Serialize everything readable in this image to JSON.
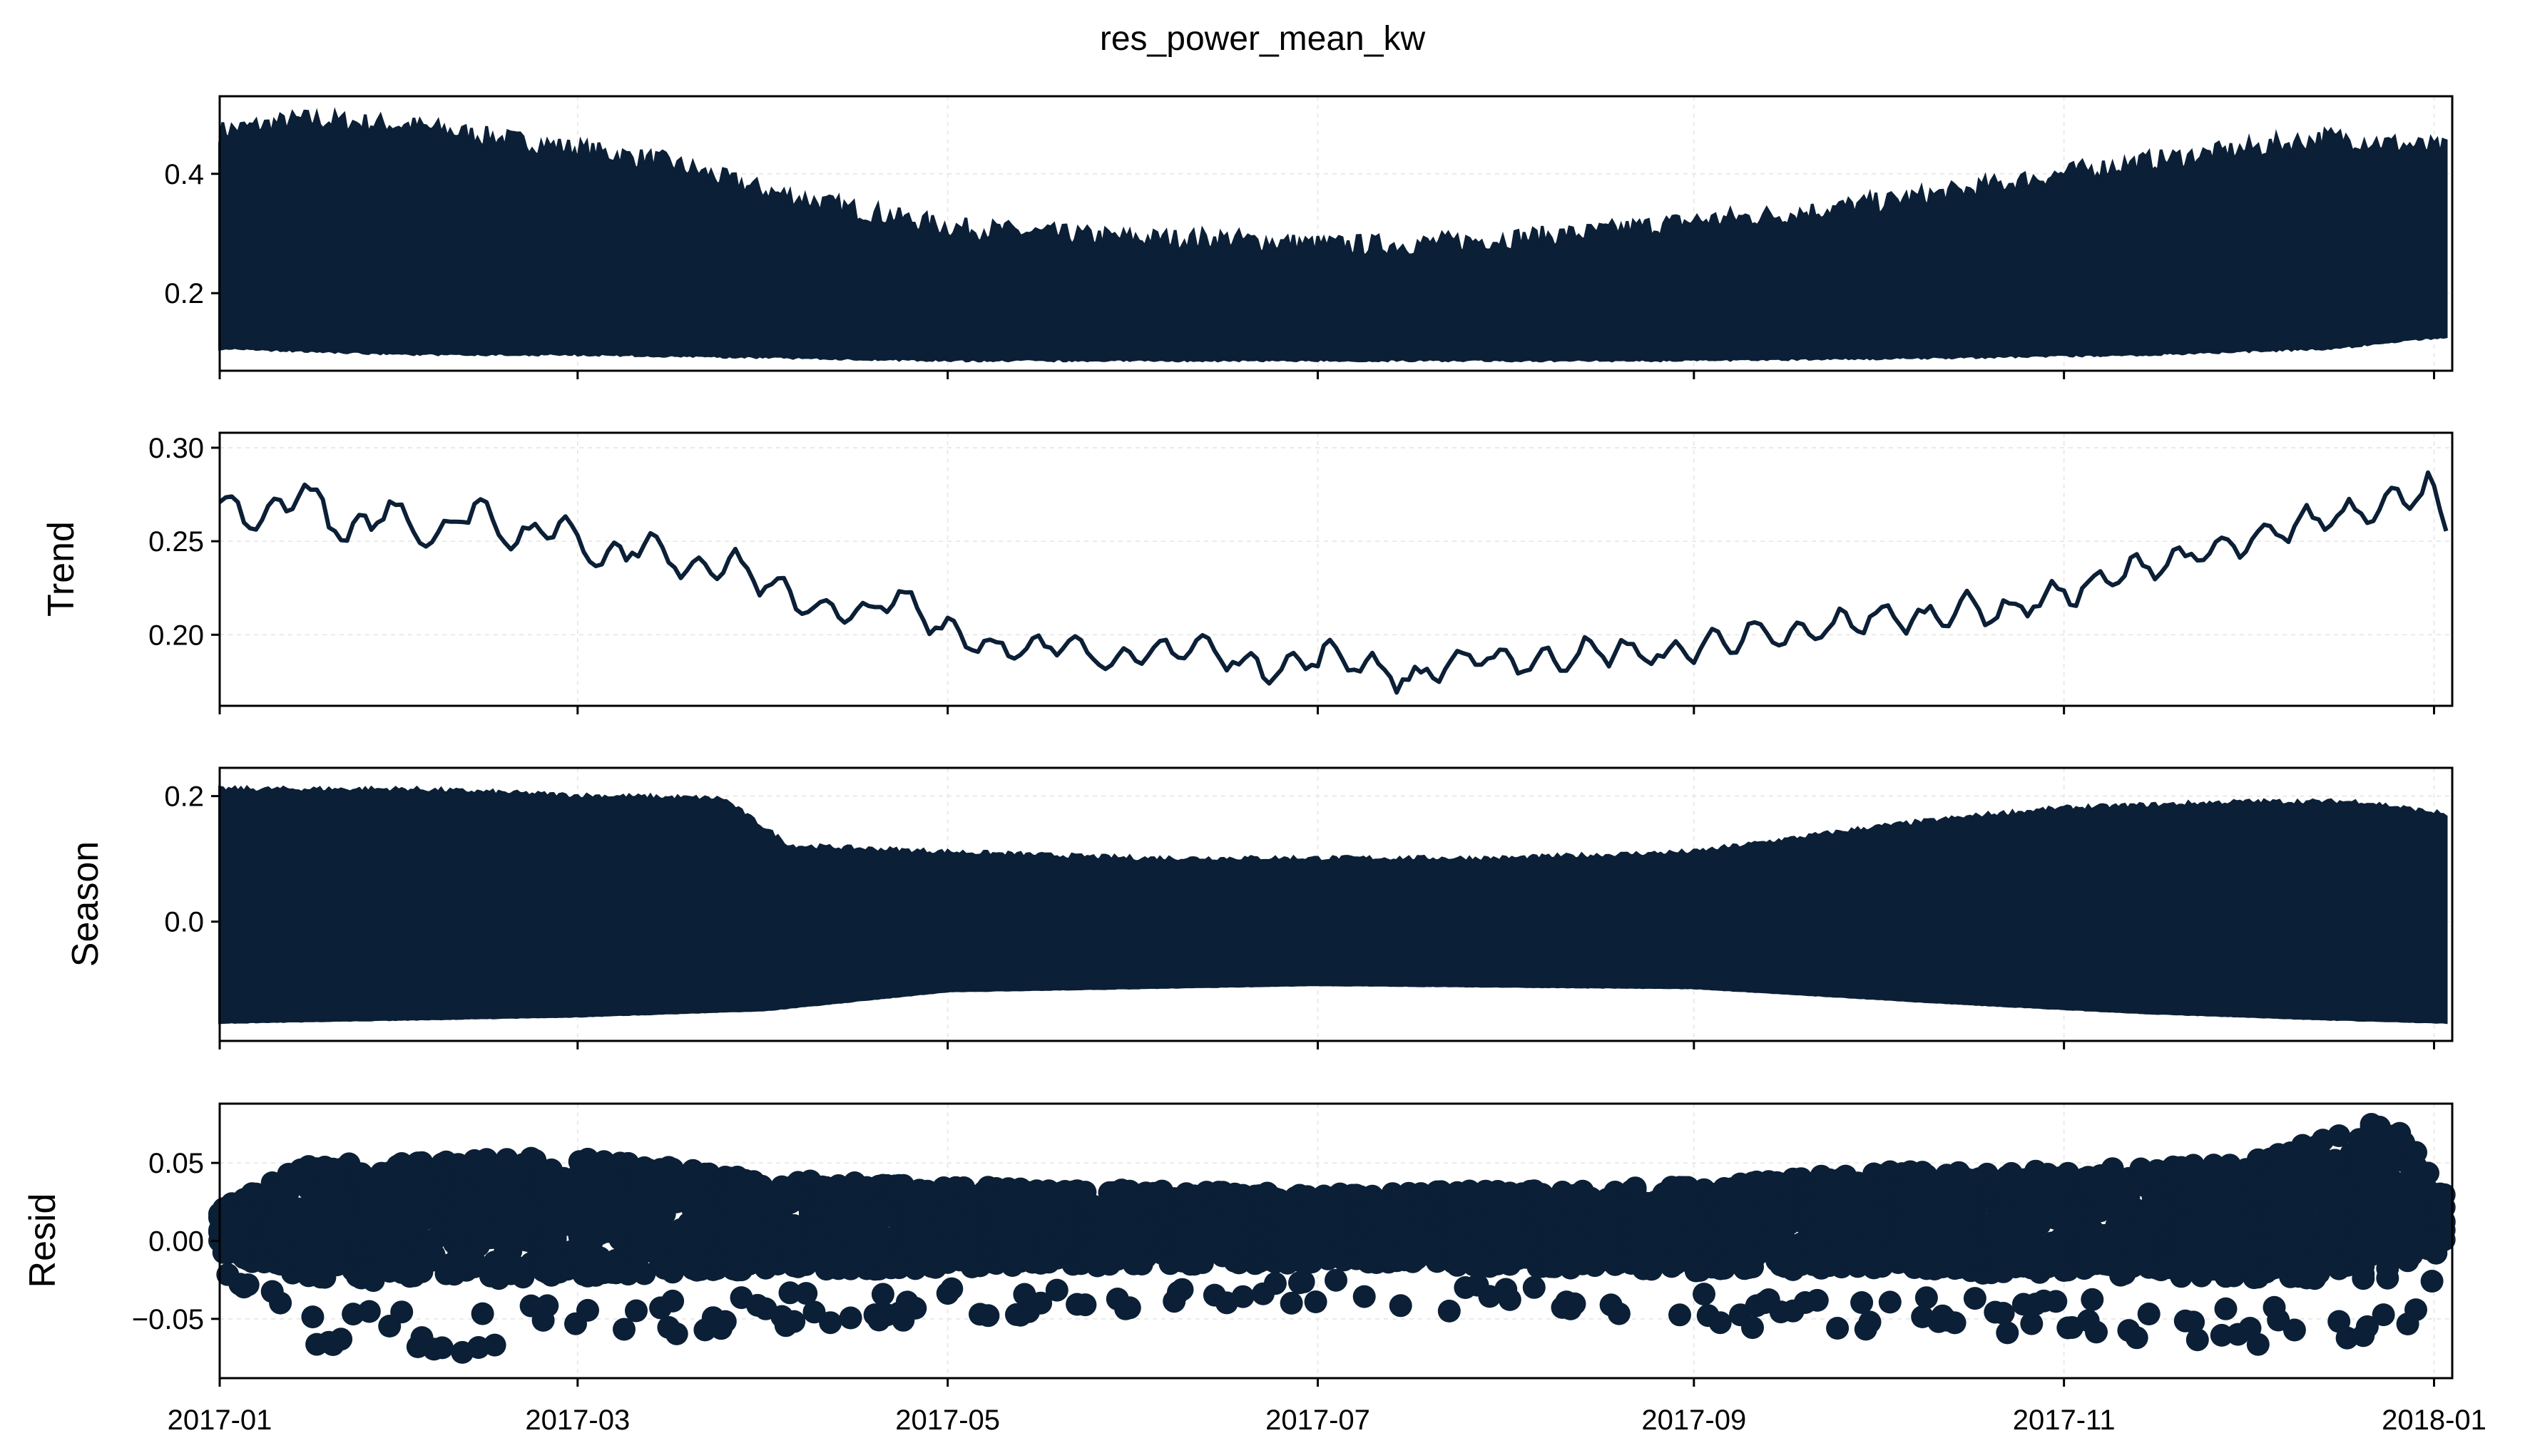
{
  "title": "res_power_mean_kw",
  "colors": {
    "series": "#0b1f36",
    "frame": "#000000"
  },
  "x_ticks": [
    "2017-01",
    "2017-03",
    "2017-05",
    "2017-07",
    "2017-09",
    "2017-11",
    "2018-01"
  ],
  "chart_data": [
    {
      "type": "area",
      "panel": "observed",
      "ylabel": "",
      "xlim": [
        "2017-01-01",
        "2018-01-04"
      ],
      "ylim": [
        0.07,
        0.53
      ],
      "yticks": [
        0.2,
        0.4
      ],
      "ytick_labels": [
        "0.2",
        "0.4"
      ],
      "grid": true,
      "series": [
        {
          "values_upper": [
            [
              "2017-01-01",
              0.47
            ],
            [
              "2017-01-15",
              0.49
            ],
            [
              "2017-02-01",
              0.48
            ],
            [
              "2017-02-15",
              0.46
            ],
            [
              "2017-03-01",
              0.44
            ],
            [
              "2017-03-15",
              0.42
            ],
            [
              "2017-04-01",
              0.37
            ],
            [
              "2017-04-15",
              0.34
            ],
            [
              "2017-05-01",
              0.31
            ],
            [
              "2017-05-15",
              0.3
            ],
            [
              "2017-06-01",
              0.29
            ],
            [
              "2017-06-15",
              0.29
            ],
            [
              "2017-07-01",
              0.28
            ],
            [
              "2017-07-15",
              0.28
            ],
            [
              "2017-08-01",
              0.29
            ],
            [
              "2017-08-15",
              0.3
            ],
            [
              "2017-09-01",
              0.32
            ],
            [
              "2017-09-15",
              0.33
            ],
            [
              "2017-10-01",
              0.35
            ],
            [
              "2017-10-15",
              0.37
            ],
            [
              "2017-11-01",
              0.4
            ],
            [
              "2017-11-15",
              0.42
            ],
            [
              "2017-12-01",
              0.44
            ],
            [
              "2017-12-15",
              0.46
            ],
            [
              "2018-01-03",
              0.44
            ]
          ],
          "values_lower": [
            [
              "2017-01-01",
              0.11
            ],
            [
              "2017-02-01",
              0.1
            ],
            [
              "2017-03-01",
              0.1
            ],
            [
              "2017-04-01",
              0.095
            ],
            [
              "2017-05-01",
              0.09
            ],
            [
              "2017-07-01",
              0.09
            ],
            [
              "2017-09-01",
              0.09
            ],
            [
              "2017-10-15",
              0.095
            ],
            [
              "2017-11-15",
              0.1
            ],
            [
              "2017-12-15",
              0.11
            ],
            [
              "2018-01-03",
              0.13
            ]
          ]
        }
      ]
    },
    {
      "type": "line",
      "panel": "trend",
      "ylabel": "Trend",
      "xlim": [
        "2017-01-01",
        "2018-01-04"
      ],
      "ylim": [
        0.162,
        0.308
      ],
      "yticks": [
        0.2,
        0.25,
        0.3
      ],
      "ytick_labels": [
        "0.20",
        "0.25",
        "0.30"
      ],
      "grid": true,
      "series": [
        {
          "values": [
            [
              "2017-01-01",
              0.27
            ],
            [
              "2017-01-08",
              0.26
            ],
            [
              "2017-01-15",
              0.28
            ],
            [
              "2017-01-22",
              0.25
            ],
            [
              "2017-01-29",
              0.27
            ],
            [
              "2017-02-05",
              0.25
            ],
            [
              "2017-02-12",
              0.27
            ],
            [
              "2017-02-19",
              0.25
            ],
            [
              "2017-02-26",
              0.26
            ],
            [
              "2017-03-05",
              0.24
            ],
            [
              "2017-03-12",
              0.25
            ],
            [
              "2017-03-19",
              0.235
            ],
            [
              "2017-03-26",
              0.24
            ],
            [
              "2017-04-02",
              0.225
            ],
            [
              "2017-04-09",
              0.215
            ],
            [
              "2017-04-16",
              0.21
            ],
            [
              "2017-04-23",
              0.22
            ],
            [
              "2017-04-30",
              0.205
            ],
            [
              "2017-05-07",
              0.195
            ],
            [
              "2017-05-14",
              0.19
            ],
            [
              "2017-05-21",
              0.198
            ],
            [
              "2017-05-28",
              0.185
            ],
            [
              "2017-06-04",
              0.19
            ],
            [
              "2017-06-11",
              0.195
            ],
            [
              "2017-06-18",
              0.185
            ],
            [
              "2017-06-25",
              0.182
            ],
            [
              "2017-07-02",
              0.19
            ],
            [
              "2017-07-09",
              0.185
            ],
            [
              "2017-07-16",
              0.175
            ],
            [
              "2017-07-23",
              0.185
            ],
            [
              "2017-07-30",
              0.188
            ],
            [
              "2017-08-06",
              0.185
            ],
            [
              "2017-08-13",
              0.19
            ],
            [
              "2017-08-20",
              0.192
            ],
            [
              "2017-08-27",
              0.188
            ],
            [
              "2017-09-03",
              0.195
            ],
            [
              "2017-09-10",
              0.2
            ],
            [
              "2017-09-17",
              0.198
            ],
            [
              "2017-09-24",
              0.205
            ],
            [
              "2017-10-01",
              0.21
            ],
            [
              "2017-10-08",
              0.208
            ],
            [
              "2017-10-15",
              0.215
            ],
            [
              "2017-10-22",
              0.212
            ],
            [
              "2017-10-29",
              0.22
            ],
            [
              "2017-11-05",
              0.225
            ],
            [
              "2017-11-12",
              0.235
            ],
            [
              "2017-11-19",
              0.24
            ],
            [
              "2017-11-26",
              0.245
            ],
            [
              "2017-12-03",
              0.25
            ],
            [
              "2017-12-10",
              0.26
            ],
            [
              "2017-12-17",
              0.265
            ],
            [
              "2017-12-24",
              0.27
            ],
            [
              "2017-12-31",
              0.28
            ],
            [
              "2018-01-03",
              0.255
            ]
          ]
        }
      ]
    },
    {
      "type": "area",
      "panel": "season",
      "ylabel": "Season",
      "xlim": [
        "2017-01-01",
        "2018-01-04"
      ],
      "ylim": [
        -0.19,
        0.245
      ],
      "yticks": [
        0.0,
        0.2
      ],
      "ytick_labels": [
        "0.0",
        "0.2"
      ],
      "grid": true,
      "series": [
        {
          "values_upper": [
            [
              "2017-01-01",
              0.21
            ],
            [
              "2017-02-01",
              0.21
            ],
            [
              "2017-03-01",
              0.2
            ],
            [
              "2017-03-25",
              0.195
            ],
            [
              "2017-04-05",
              0.12
            ],
            [
              "2017-05-01",
              0.11
            ],
            [
              "2017-06-01",
              0.1
            ],
            [
              "2017-07-01",
              0.1
            ],
            [
              "2017-08-01",
              0.1
            ],
            [
              "2017-09-01",
              0.11
            ],
            [
              "2017-10-01",
              0.15
            ],
            [
              "2017-10-20",
              0.17
            ],
            [
              "2017-11-01",
              0.18
            ],
            [
              "2017-12-01",
              0.19
            ],
            [
              "2017-12-20",
              0.19
            ],
            [
              "2018-01-03",
              0.17
            ]
          ],
          "values_lower": [
            [
              "2017-01-01",
              -0.16
            ],
            [
              "2017-02-01",
              -0.155
            ],
            [
              "2017-03-01",
              -0.15
            ],
            [
              "2017-04-01",
              -0.14
            ],
            [
              "2017-05-01",
              -0.11
            ],
            [
              "2017-07-01",
              -0.1
            ],
            [
              "2017-09-01",
              -0.105
            ],
            [
              "2017-10-15",
              -0.13
            ],
            [
              "2017-11-15",
              -0.145
            ],
            [
              "2017-12-15",
              -0.155
            ],
            [
              "2018-01-03",
              -0.16
            ]
          ]
        }
      ]
    },
    {
      "type": "scatter",
      "panel": "resid",
      "ylabel": "Resid",
      "xlim": [
        "2017-01-01",
        "2018-01-04"
      ],
      "ylim": [
        -0.088,
        0.088
      ],
      "yticks": [
        -0.05,
        0.0,
        0.05
      ],
      "ytick_labels": [
        "−0.05",
        "0.00",
        "0.05"
      ],
      "grid": true,
      "series": [
        {
          "envelope_upper": [
            [
              "2017-01-01",
              0.02
            ],
            [
              "2017-01-15",
              0.05
            ],
            [
              "2017-02-01",
              0.05
            ],
            [
              "2017-03-01",
              0.055
            ],
            [
              "2017-04-01",
              0.04
            ],
            [
              "2017-05-01",
              0.035
            ],
            [
              "2017-07-01",
              0.03
            ],
            [
              "2017-09-01",
              0.035
            ],
            [
              "2017-10-01",
              0.045
            ],
            [
              "2017-11-01",
              0.045
            ],
            [
              "2017-12-01",
              0.05
            ],
            [
              "2017-12-25",
              0.08
            ],
            [
              "2018-01-03",
              0.03
            ]
          ],
          "envelope_lower": [
            [
              "2017-01-01",
              -0.02
            ],
            [
              "2017-01-15",
              -0.07
            ],
            [
              "2017-02-01",
              -0.075
            ],
            [
              "2017-03-01",
              -0.065
            ],
            [
              "2017-04-01",
              -0.055
            ],
            [
              "2017-05-01",
              -0.05
            ],
            [
              "2017-07-01",
              -0.04
            ],
            [
              "2017-09-01",
              -0.055
            ],
            [
              "2017-10-01",
              -0.06
            ],
            [
              "2017-11-01",
              -0.06
            ],
            [
              "2017-12-01",
              -0.07
            ],
            [
              "2017-12-25",
              -0.07
            ],
            [
              "2018-01-03",
              -0.02
            ]
          ]
        }
      ]
    }
  ]
}
